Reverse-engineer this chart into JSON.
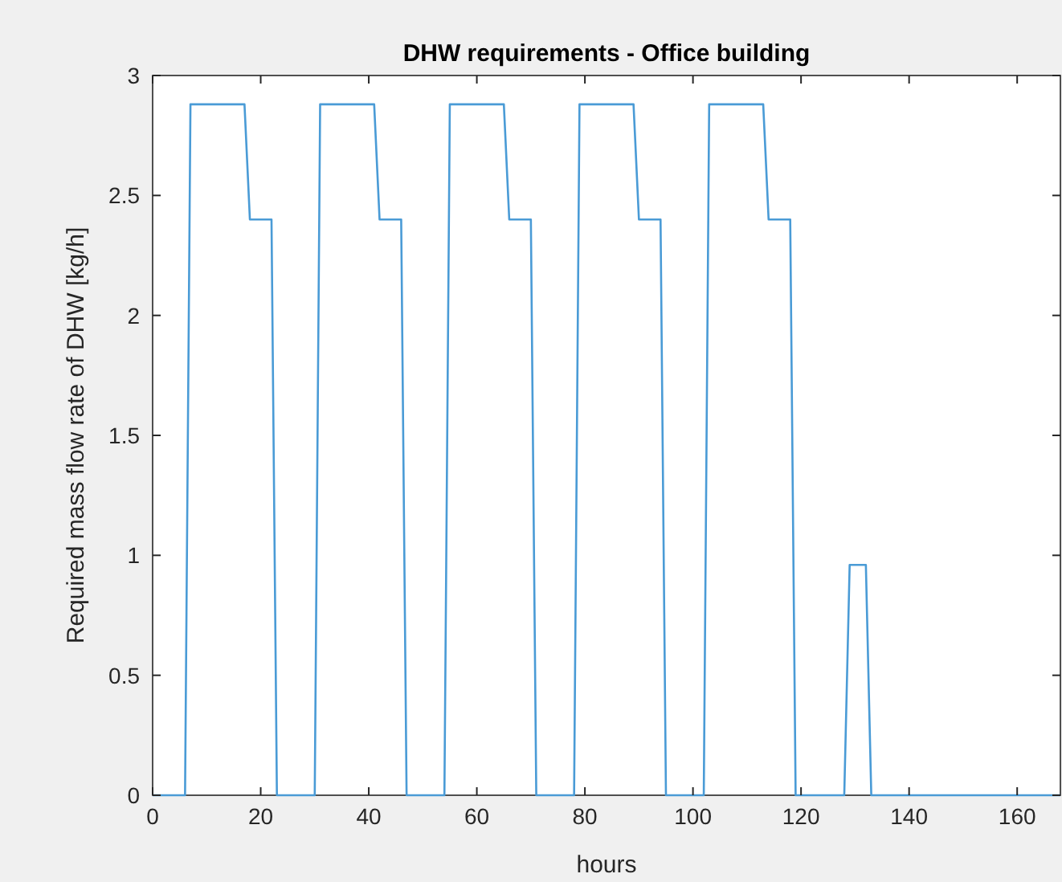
{
  "chart_data": {
    "type": "line",
    "title": "DHW requirements - Office building",
    "xlabel": "hours",
    "ylabel": "Required mass flow rate of DHW [kg/h]",
    "xlim": [
      0,
      168
    ],
    "ylim": [
      0,
      3
    ],
    "xticks": [
      0,
      20,
      40,
      60,
      80,
      100,
      120,
      140,
      160
    ],
    "yticks": [
      0,
      0.5,
      1,
      1.5,
      2,
      2.5,
      3
    ],
    "grid": false,
    "marker": "none",
    "line_style": "solid",
    "series": [
      {
        "color": "#4a9bd6",
        "x": [
          0,
          6,
          7,
          17,
          18,
          22,
          23,
          30,
          31,
          41,
          42,
          46,
          47,
          54,
          55,
          65,
          66,
          70,
          71,
          78,
          79,
          89,
          90,
          94,
          95,
          102,
          103,
          113,
          114,
          118,
          119,
          128,
          129,
          132,
          133,
          168
        ],
        "values": [
          0,
          0,
          2.88,
          2.88,
          2.4,
          2.4,
          0,
          0,
          2.88,
          2.88,
          2.4,
          2.4,
          0,
          0,
          2.88,
          2.88,
          2.4,
          2.4,
          0,
          0,
          2.88,
          2.88,
          2.4,
          2.4,
          0,
          0,
          2.88,
          2.88,
          2.4,
          2.4,
          0,
          0,
          0.96,
          0.96,
          0,
          0
        ]
      }
    ]
  }
}
